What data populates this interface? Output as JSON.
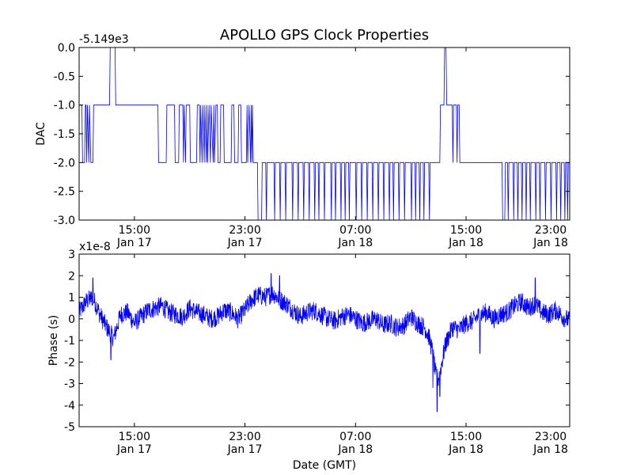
{
  "figure": {
    "title": "APOLLO GPS Clock Properties"
  },
  "chart_data": [
    {
      "type": "line",
      "ylabel": "DAC",
      "offset_text": "-5.149e3",
      "ylim": [
        -3.0,
        0.0
      ],
      "yticks": [
        0.0,
        -0.5,
        -1.0,
        -1.5,
        -2.0,
        -2.5,
        -3.0
      ],
      "ytick_labels": [
        "0.0",
        "-0.5",
        "-1.0",
        "-1.5",
        "-2.0",
        "-2.5",
        "-3.0"
      ],
      "xlim": [
        11.0,
        46.5
      ],
      "xticks": [
        15,
        23,
        31,
        39,
        47
      ],
      "xtick_labels": [
        [
          "15:00",
          "Jan 17"
        ],
        [
          "23:00",
          "Jan 17"
        ],
        [
          "07:00",
          "Jan 18"
        ],
        [
          "15:00",
          "Jan 18"
        ],
        [
          "23:00",
          "Jan 18"
        ]
      ],
      "color": "#0000ff",
      "grid": false,
      "series_points": [
        [
          11.0,
          -1.0
        ],
        [
          11.2,
          -1.0
        ],
        [
          11.25,
          -2.0
        ],
        [
          11.4,
          -2.0
        ],
        [
          11.45,
          -1.0
        ],
        [
          11.5,
          -1.0
        ],
        [
          11.55,
          -2.0
        ],
        [
          11.6,
          -1.0
        ],
        [
          11.7,
          -2.0
        ],
        [
          11.75,
          -1.0
        ],
        [
          11.85,
          -2.0
        ],
        [
          12.0,
          -2.0
        ],
        [
          12.05,
          -1.0
        ],
        [
          13.2,
          -1.0
        ],
        [
          13.25,
          0.0
        ],
        [
          13.6,
          0.0
        ],
        [
          13.65,
          -1.0
        ],
        [
          16.7,
          -1.0
        ],
        [
          16.75,
          -2.0
        ],
        [
          17.3,
          -2.0
        ],
        [
          17.35,
          -1.0
        ],
        [
          17.6,
          -1.0
        ],
        [
          17.9,
          -1.0
        ],
        [
          17.95,
          -2.0
        ],
        [
          18.2,
          -2.0
        ],
        [
          18.25,
          -1.0
        ],
        [
          18.5,
          -1.0
        ],
        [
          18.55,
          -2.0
        ],
        [
          18.6,
          -1.0
        ],
        [
          18.7,
          -2.0
        ],
        [
          18.75,
          -1.0
        ],
        [
          19.0,
          -1.0
        ],
        [
          19.05,
          -2.0
        ],
        [
          19.5,
          -2.0
        ],
        [
          19.55,
          -1.0
        ],
        [
          19.7,
          -1.0
        ],
        [
          19.75,
          -2.0
        ],
        [
          19.8,
          -1.0
        ],
        [
          19.9,
          -2.0
        ],
        [
          19.95,
          -1.0
        ],
        [
          20.05,
          -2.0
        ],
        [
          20.1,
          -1.0
        ],
        [
          20.2,
          -2.0
        ],
        [
          20.25,
          -1.0
        ],
        [
          20.3,
          -2.0
        ],
        [
          20.4,
          -1.0
        ],
        [
          20.5,
          -2.0
        ],
        [
          20.55,
          -1.0
        ],
        [
          20.7,
          -2.0
        ],
        [
          20.75,
          -1.0
        ],
        [
          20.8,
          -2.0
        ],
        [
          20.9,
          -1.0
        ],
        [
          21.0,
          -1.0
        ],
        [
          21.05,
          -2.0
        ],
        [
          21.2,
          -2.0
        ],
        [
          21.25,
          -1.0
        ],
        [
          21.45,
          -1.0
        ],
        [
          21.5,
          -2.0
        ],
        [
          22.0,
          -2.0
        ],
        [
          22.05,
          -1.0
        ],
        [
          22.2,
          -1.0
        ],
        [
          22.25,
          -2.0
        ],
        [
          22.5,
          -2.0
        ],
        [
          22.55,
          -1.0
        ],
        [
          22.7,
          -1.0
        ],
        [
          22.75,
          -2.0
        ],
        [
          23.1,
          -2.0
        ],
        [
          23.15,
          -1.0
        ],
        [
          23.2,
          -2.0
        ],
        [
          23.3,
          -1.0
        ],
        [
          23.4,
          -2.0
        ],
        [
          23.45,
          -1.0
        ],
        [
          23.5,
          -2.0
        ],
        [
          23.55,
          -1.0
        ],
        [
          23.6,
          -2.0
        ],
        [
          23.9,
          -2.0
        ],
        [
          23.95,
          -3.0
        ],
        [
          24.2,
          -3.0
        ],
        [
          24.25,
          -2.0
        ],
        [
          24.5,
          -2.0
        ],
        [
          24.55,
          -3.0
        ],
        [
          24.6,
          -2.0
        ],
        [
          25.1,
          -2.0
        ],
        [
          25.15,
          -3.0
        ],
        [
          25.2,
          -2.0
        ],
        [
          25.5,
          -2.0
        ],
        [
          25.55,
          -3.0
        ],
        [
          25.6,
          -2.0
        ],
        [
          25.9,
          -2.0
        ],
        [
          25.95,
          -3.0
        ],
        [
          26.0,
          -2.0
        ],
        [
          26.4,
          -2.0
        ],
        [
          26.45,
          -3.0
        ],
        [
          26.5,
          -2.0
        ],
        [
          26.8,
          -2.0
        ],
        [
          26.85,
          -3.0
        ],
        [
          26.9,
          -2.0
        ],
        [
          27.2,
          -2.0
        ],
        [
          27.25,
          -3.0
        ],
        [
          27.3,
          -2.0
        ],
        [
          27.6,
          -2.0
        ],
        [
          27.65,
          -3.0
        ],
        [
          27.7,
          -2.0
        ],
        [
          28.0,
          -2.0
        ],
        [
          28.05,
          -3.0
        ],
        [
          28.1,
          -2.0
        ],
        [
          28.3,
          -2.0
        ],
        [
          28.35,
          -3.0
        ],
        [
          28.4,
          -2.0
        ],
        [
          28.7,
          -2.0
        ],
        [
          28.75,
          -3.0
        ],
        [
          28.8,
          -2.0
        ],
        [
          29.2,
          -2.0
        ],
        [
          29.25,
          -3.0
        ],
        [
          29.3,
          -2.0
        ],
        [
          29.5,
          -2.0
        ],
        [
          29.55,
          -3.0
        ],
        [
          29.6,
          -2.0
        ],
        [
          29.9,
          -2.0
        ],
        [
          29.95,
          -3.0
        ],
        [
          30.0,
          -2.0
        ],
        [
          30.2,
          -2.0
        ],
        [
          30.25,
          -3.0
        ],
        [
          30.3,
          -2.0
        ],
        [
          30.5,
          -2.0
        ],
        [
          30.55,
          -3.0
        ],
        [
          30.6,
          -2.0
        ],
        [
          31.0,
          -2.0
        ],
        [
          31.05,
          -3.0
        ],
        [
          31.1,
          -2.0
        ],
        [
          31.4,
          -2.0
        ],
        [
          31.45,
          -3.0
        ],
        [
          31.5,
          -2.0
        ],
        [
          31.8,
          -2.0
        ],
        [
          31.85,
          -3.0
        ],
        [
          31.9,
          -2.0
        ],
        [
          32.2,
          -2.0
        ],
        [
          32.25,
          -3.0
        ],
        [
          32.3,
          -2.0
        ],
        [
          32.6,
          -2.0
        ],
        [
          32.65,
          -3.0
        ],
        [
          32.7,
          -2.0
        ],
        [
          33.0,
          -2.0
        ],
        [
          33.05,
          -3.0
        ],
        [
          33.1,
          -2.0
        ],
        [
          33.4,
          -2.0
        ],
        [
          33.45,
          -3.0
        ],
        [
          33.5,
          -2.0
        ],
        [
          33.7,
          -2.0
        ],
        [
          33.75,
          -3.0
        ],
        [
          33.8,
          -2.0
        ],
        [
          34.1,
          -2.0
        ],
        [
          34.15,
          -3.0
        ],
        [
          34.2,
          -2.0
        ],
        [
          34.5,
          -2.0
        ],
        [
          34.55,
          -3.0
        ],
        [
          34.6,
          -2.0
        ],
        [
          35.0,
          -2.0
        ],
        [
          35.05,
          -3.0
        ],
        [
          35.1,
          -2.0
        ],
        [
          35.3,
          -2.0
        ],
        [
          35.35,
          -3.0
        ],
        [
          35.4,
          -2.0
        ],
        [
          35.6,
          -2.0
        ],
        [
          35.65,
          -3.0
        ],
        [
          35.7,
          -2.0
        ],
        [
          35.9,
          -2.0
        ],
        [
          35.95,
          -3.0
        ],
        [
          36.0,
          -2.0
        ],
        [
          36.3,
          -2.0
        ],
        [
          36.35,
          -3.0
        ],
        [
          36.4,
          -2.0
        ],
        [
          37.1,
          -2.0
        ],
        [
          37.15,
          -1.0
        ],
        [
          37.4,
          -1.0
        ],
        [
          37.45,
          -0.0
        ],
        [
          37.55,
          -0.0
        ],
        [
          37.6,
          -1.0
        ],
        [
          38.0,
          -1.0
        ],
        [
          38.05,
          -2.0
        ],
        [
          38.1,
          -1.0
        ],
        [
          38.3,
          -1.0
        ],
        [
          38.35,
          -2.0
        ],
        [
          38.4,
          -1.0
        ],
        [
          38.5,
          -1.0
        ],
        [
          38.55,
          -2.0
        ],
        [
          41.6,
          -2.0
        ],
        [
          41.65,
          -3.0
        ],
        [
          41.8,
          -3.0
        ],
        [
          41.85,
          -2.0
        ],
        [
          42.0,
          -2.0
        ],
        [
          42.05,
          -3.0
        ],
        [
          42.1,
          -2.0
        ],
        [
          42.4,
          -2.0
        ],
        [
          42.45,
          -3.0
        ],
        [
          42.5,
          -2.0
        ],
        [
          42.7,
          -2.0
        ],
        [
          42.75,
          -3.0
        ],
        [
          42.8,
          -2.0
        ],
        [
          43.0,
          -2.0
        ],
        [
          43.05,
          -3.0
        ],
        [
          43.1,
          -2.0
        ],
        [
          43.3,
          -2.0
        ],
        [
          43.35,
          -3.0
        ],
        [
          43.4,
          -2.0
        ],
        [
          43.6,
          -2.0
        ],
        [
          43.65,
          -3.0
        ],
        [
          43.7,
          -2.0
        ],
        [
          44.0,
          -2.0
        ],
        [
          44.05,
          -3.0
        ],
        [
          44.1,
          -2.0
        ],
        [
          44.3,
          -2.0
        ],
        [
          44.35,
          -3.0
        ],
        [
          44.4,
          -2.0
        ],
        [
          44.7,
          -2.0
        ],
        [
          44.75,
          -3.0
        ],
        [
          44.8,
          -2.0
        ],
        [
          45.1,
          -2.0
        ],
        [
          45.15,
          -3.0
        ],
        [
          45.2,
          -2.0
        ],
        [
          45.5,
          -2.0
        ],
        [
          45.55,
          -3.0
        ],
        [
          45.6,
          -2.0
        ],
        [
          45.8,
          -2.0
        ],
        [
          45.85,
          -3.0
        ],
        [
          45.9,
          -2.0
        ],
        [
          46.1,
          -2.0
        ],
        [
          46.15,
          -3.0
        ],
        [
          46.2,
          -2.0
        ],
        [
          46.3,
          -2.0
        ],
        [
          46.35,
          -3.0
        ],
        [
          46.4,
          -2.0
        ],
        [
          46.5,
          -2.0
        ]
      ]
    },
    {
      "type": "line",
      "ylabel": "Phase (s)",
      "xlabel": "Date (GMT)",
      "offset_text": "x1e-8",
      "ylim": [
        -5,
        3
      ],
      "yticks": [
        3,
        2,
        1,
        0,
        -1,
        -2,
        -3,
        -4,
        -5
      ],
      "ytick_labels": [
        "3",
        "2",
        "1",
        "0",
        "-1",
        "-2",
        "-3",
        "-4",
        "-5"
      ],
      "xlim": [
        11.0,
        46.5
      ],
      "xticks": [
        15,
        23,
        31,
        39,
        47
      ],
      "xtick_labels": [
        [
          "15:00",
          "Jan 17"
        ],
        [
          "23:00",
          "Jan 17"
        ],
        [
          "07:00",
          "Jan 18"
        ],
        [
          "15:00",
          "Jan 18"
        ],
        [
          "23:00",
          "Jan 18"
        ]
      ],
      "color": "#0000ff",
      "grid": false,
      "noise_amplitude": 0.45,
      "trend_points": [
        [
          11.0,
          0.3
        ],
        [
          11.5,
          0.8
        ],
        [
          12.0,
          1.0
        ],
        [
          12.5,
          0.2
        ],
        [
          13.0,
          -0.4
        ],
        [
          13.5,
          -0.9
        ],
        [
          14.0,
          0.2
        ],
        [
          14.5,
          0.3
        ],
        [
          15.0,
          -0.2
        ],
        [
          15.5,
          0.1
        ],
        [
          16.0,
          0.4
        ],
        [
          16.5,
          0.5
        ],
        [
          17.0,
          0.6
        ],
        [
          17.5,
          0.3
        ],
        [
          18.0,
          0.2
        ],
        [
          18.5,
          0.1
        ],
        [
          19.0,
          0.5
        ],
        [
          19.5,
          0.3
        ],
        [
          20.0,
          0.2
        ],
        [
          20.5,
          0.0
        ],
        [
          21.0,
          0.1
        ],
        [
          21.5,
          0.4
        ],
        [
          22.0,
          0.3
        ],
        [
          22.5,
          0.0
        ],
        [
          23.0,
          0.4
        ],
        [
          23.5,
          0.9
        ],
        [
          24.0,
          1.1
        ],
        [
          24.5,
          1.0
        ],
        [
          25.0,
          1.2
        ],
        [
          25.5,
          0.9
        ],
        [
          26.0,
          0.7
        ],
        [
          26.5,
          0.4
        ],
        [
          27.0,
          0.1
        ],
        [
          27.5,
          0.3
        ],
        [
          28.0,
          0.4
        ],
        [
          28.5,
          0.2
        ],
        [
          29.0,
          0.0
        ],
        [
          29.5,
          -0.1
        ],
        [
          30.0,
          0.1
        ],
        [
          30.5,
          0.2
        ],
        [
          31.0,
          0.0
        ],
        [
          31.5,
          -0.2
        ],
        [
          32.0,
          -0.1
        ],
        [
          32.5,
          0.0
        ],
        [
          33.0,
          -0.3
        ],
        [
          33.5,
          -0.2
        ],
        [
          34.0,
          -0.4
        ],
        [
          34.5,
          -0.3
        ],
        [
          35.0,
          0.1
        ],
        [
          35.5,
          -0.2
        ],
        [
          36.0,
          -0.4
        ],
        [
          36.3,
          -0.8
        ],
        [
          36.6,
          -1.6
        ],
        [
          36.8,
          -2.6
        ],
        [
          37.0,
          -2.8
        ],
        [
          37.2,
          -2.2
        ],
        [
          37.5,
          -1.2
        ],
        [
          38.0,
          -0.4
        ],
        [
          38.5,
          -0.5
        ],
        [
          39.0,
          -0.2
        ],
        [
          39.5,
          -0.1
        ],
        [
          40.0,
          0.2
        ],
        [
          40.5,
          0.3
        ],
        [
          41.0,
          0.0
        ],
        [
          41.5,
          0.2
        ],
        [
          42.0,
          0.3
        ],
        [
          42.5,
          0.6
        ],
        [
          43.0,
          0.8
        ],
        [
          43.5,
          0.5
        ],
        [
          44.0,
          0.7
        ],
        [
          44.5,
          0.3
        ],
        [
          45.0,
          0.2
        ],
        [
          45.5,
          0.4
        ],
        [
          46.0,
          0.1
        ],
        [
          46.5,
          -0.1
        ]
      ],
      "spikes": [
        [
          12.0,
          1.9
        ],
        [
          13.3,
          -1.9
        ],
        [
          24.9,
          2.1
        ],
        [
          25.5,
          2.0
        ],
        [
          36.6,
          -3.2
        ],
        [
          36.9,
          -4.3
        ],
        [
          37.1,
          -3.6
        ],
        [
          44.0,
          1.9
        ],
        [
          40.0,
          -1.6
        ]
      ]
    }
  ]
}
